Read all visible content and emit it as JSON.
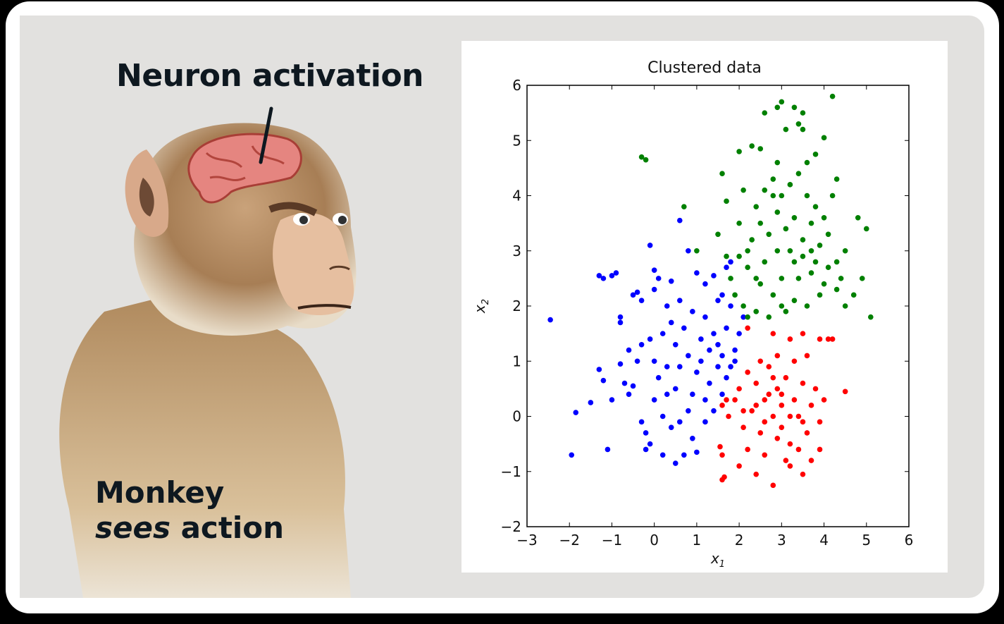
{
  "left_panel": {
    "caption_top": "Neuron activation",
    "caption_bottom_line1": "Monkey",
    "caption_bottom_italic": "sees",
    "caption_bottom_rest": " action",
    "illustration": "monkey-with-exposed-brain"
  },
  "chart_data": {
    "type": "scatter",
    "title": "Clustered data",
    "xlabel": "x_1",
    "ylabel": "x_2",
    "xlim": [
      -3,
      6
    ],
    "ylim": [
      -2,
      6
    ],
    "xticks": [
      "−3",
      "−2",
      "−1",
      "0",
      "1",
      "2",
      "3",
      "4",
      "5",
      "6"
    ],
    "yticks": [
      "−2",
      "−1",
      "0",
      "1",
      "2",
      "3",
      "4",
      "5",
      "6"
    ],
    "grid": false,
    "legend": null,
    "series": [
      {
        "name": "cluster-blue",
        "color": "#0000ff",
        "center": [
          0.8,
          1.2
        ],
        "points": [
          [
            -2.45,
            1.75
          ],
          [
            -1.95,
            -0.7
          ],
          [
            -1.85,
            0.07
          ],
          [
            -1.5,
            0.25
          ],
          [
            -1.1,
            -0.6
          ],
          [
            -1.3,
            2.55
          ],
          [
            -1.2,
            2.5
          ],
          [
            -1.0,
            2.55
          ],
          [
            -0.9,
            2.6
          ],
          [
            -0.8,
            1.8
          ],
          [
            -0.8,
            1.7
          ],
          [
            -0.6,
            1.2
          ],
          [
            -0.5,
            2.2
          ],
          [
            -0.4,
            2.25
          ],
          [
            -0.3,
            2.1
          ],
          [
            -0.1,
            3.1
          ],
          [
            0.0,
            2.65
          ],
          [
            0.1,
            2.5
          ],
          [
            0.0,
            2.3
          ],
          [
            0.4,
            2.45
          ],
          [
            0.6,
            3.55
          ],
          [
            0.8,
            3.0
          ],
          [
            1.0,
            2.6
          ],
          [
            1.2,
            2.4
          ],
          [
            1.4,
            2.55
          ],
          [
            1.6,
            2.2
          ],
          [
            1.5,
            2.1
          ],
          [
            1.8,
            2.8
          ],
          [
            1.7,
            2.7
          ],
          [
            -1.3,
            0.85
          ],
          [
            -1.2,
            0.65
          ],
          [
            -1.0,
            0.3
          ],
          [
            -0.8,
            0.95
          ],
          [
            -0.7,
            0.6
          ],
          [
            -0.5,
            0.55
          ],
          [
            -0.6,
            0.4
          ],
          [
            -0.3,
            -0.1
          ],
          [
            -0.2,
            -0.3
          ],
          [
            -0.2,
            -0.6
          ],
          [
            -0.1,
            -0.5
          ],
          [
            0.0,
            0.3
          ],
          [
            0.2,
            0.0
          ],
          [
            0.3,
            0.9
          ],
          [
            0.5,
            0.5
          ],
          [
            0.6,
            -0.1
          ],
          [
            0.8,
            0.1
          ],
          [
            0.9,
            -0.4
          ],
          [
            1.0,
            0.8
          ],
          [
            1.2,
            0.3
          ],
          [
            1.3,
            0.6
          ],
          [
            1.5,
            0.9
          ],
          [
            1.6,
            1.1
          ],
          [
            1.7,
            0.7
          ],
          [
            0.2,
            1.5
          ],
          [
            0.4,
            1.7
          ],
          [
            0.5,
            1.3
          ],
          [
            0.7,
            1.6
          ],
          [
            0.9,
            1.9
          ],
          [
            1.1,
            1.4
          ],
          [
            1.2,
            1.8
          ],
          [
            1.4,
            1.5
          ],
          [
            1.5,
            1.3
          ],
          [
            1.7,
            1.6
          ],
          [
            1.9,
            1.2
          ],
          [
            2.0,
            1.5
          ],
          [
            2.1,
            1.8
          ],
          [
            1.8,
            0.9
          ],
          [
            0.3,
            2.0
          ],
          [
            0.6,
            2.1
          ],
          [
            0.0,
            1.0
          ],
          [
            -0.3,
            1.3
          ],
          [
            0.1,
            0.7
          ],
          [
            0.4,
            -0.2
          ],
          [
            0.7,
            -0.7
          ],
          [
            1.0,
            -0.65
          ],
          [
            1.2,
            -0.1
          ],
          [
            1.4,
            0.1
          ],
          [
            0.5,
            -0.85
          ],
          [
            0.2,
            -0.7
          ],
          [
            0.9,
            0.4
          ],
          [
            1.1,
            1.0
          ],
          [
            1.3,
            1.2
          ],
          [
            1.6,
            0.4
          ],
          [
            0.8,
            1.1
          ],
          [
            0.3,
            0.4
          ],
          [
            -0.4,
            1.0
          ],
          [
            -0.1,
            1.4
          ],
          [
            0.6,
            0.9
          ],
          [
            1.8,
            2.0
          ],
          [
            1.9,
            1.0
          ]
        ]
      },
      {
        "name": "cluster-red",
        "color": "#ff0000",
        "center": [
          3.0,
          0.1
        ],
        "points": [
          [
            1.6,
            -1.15
          ],
          [
            1.65,
            -1.1
          ],
          [
            2.0,
            -0.9
          ],
          [
            2.4,
            -1.05
          ],
          [
            2.8,
            -1.25
          ],
          [
            3.2,
            -0.9
          ],
          [
            3.5,
            -1.05
          ],
          [
            3.7,
            -0.8
          ],
          [
            3.9,
            -0.6
          ],
          [
            4.5,
            0.45
          ],
          [
            4.2,
            1.4
          ],
          [
            4.1,
            1.4
          ],
          [
            3.9,
            1.4
          ],
          [
            2.2,
            1.6
          ],
          [
            2.8,
            1.5
          ],
          [
            3.2,
            1.4
          ],
          [
            3.5,
            1.5
          ],
          [
            1.7,
            0.3
          ],
          [
            1.6,
            0.2
          ],
          [
            1.75,
            0.0
          ],
          [
            1.9,
            0.3
          ],
          [
            2.0,
            0.5
          ],
          [
            2.1,
            -0.2
          ],
          [
            2.2,
            0.8
          ],
          [
            2.3,
            0.1
          ],
          [
            2.4,
            0.6
          ],
          [
            2.5,
            -0.3
          ],
          [
            2.6,
            0.3
          ],
          [
            2.7,
            0.9
          ],
          [
            2.8,
            0.0
          ],
          [
            2.9,
            0.5
          ],
          [
            3.0,
            -0.2
          ],
          [
            3.0,
            0.2
          ],
          [
            3.1,
            0.7
          ],
          [
            3.2,
            -0.5
          ],
          [
            3.3,
            0.3
          ],
          [
            3.4,
            0.0
          ],
          [
            3.5,
            0.6
          ],
          [
            3.6,
            -0.3
          ],
          [
            3.7,
            0.2
          ],
          [
            3.8,
            0.5
          ],
          [
            3.9,
            -0.1
          ],
          [
            4.0,
            0.3
          ],
          [
            2.5,
            1.0
          ],
          [
            2.9,
            1.1
          ],
          [
            3.3,
            1.0
          ],
          [
            3.6,
            1.1
          ],
          [
            2.2,
            -0.6
          ],
          [
            2.6,
            -0.7
          ],
          [
            3.1,
            -0.8
          ],
          [
            3.4,
            -0.6
          ],
          [
            2.7,
            0.4
          ],
          [
            2.9,
            -0.4
          ],
          [
            3.2,
            0.0
          ],
          [
            2.4,
            0.2
          ],
          [
            2.8,
            0.7
          ],
          [
            3.0,
            0.4
          ],
          [
            3.5,
            -0.1
          ],
          [
            2.6,
            -0.1
          ],
          [
            2.1,
            0.1
          ],
          [
            1.6,
            -0.7
          ],
          [
            1.55,
            -0.55
          ]
        ]
      },
      {
        "name": "cluster-green",
        "color": "#008000",
        "center": [
          3.0,
          3.0
        ],
        "points": [
          [
            -0.3,
            4.7
          ],
          [
            -0.2,
            4.65
          ],
          [
            0.7,
            3.8
          ],
          [
            1.0,
            3.0
          ],
          [
            1.6,
            4.4
          ],
          [
            1.7,
            3.9
          ],
          [
            2.0,
            4.8
          ],
          [
            2.3,
            4.9
          ],
          [
            2.5,
            4.85
          ],
          [
            2.8,
            4.0
          ],
          [
            2.9,
            5.6
          ],
          [
            3.0,
            5.7
          ],
          [
            3.3,
            5.6
          ],
          [
            3.5,
            5.5
          ],
          [
            4.2,
            5.8
          ],
          [
            2.6,
            5.5
          ],
          [
            3.4,
            5.3
          ],
          [
            3.5,
            5.2
          ],
          [
            3.1,
            5.2
          ],
          [
            4.0,
            5.05
          ],
          [
            3.8,
            4.75
          ],
          [
            4.3,
            4.3
          ],
          [
            4.8,
            3.6
          ],
          [
            5.0,
            3.4
          ],
          [
            5.1,
            1.8
          ],
          [
            4.9,
            2.5
          ],
          [
            4.7,
            2.2
          ],
          [
            4.5,
            2.0
          ],
          [
            4.3,
            2.3
          ],
          [
            4.0,
            2.4
          ],
          [
            3.9,
            2.2
          ],
          [
            3.7,
            2.6
          ],
          [
            3.5,
            2.9
          ],
          [
            3.3,
            2.8
          ],
          [
            3.0,
            2.5
          ],
          [
            2.8,
            2.2
          ],
          [
            2.5,
            2.4
          ],
          [
            2.2,
            2.7
          ],
          [
            2.0,
            2.9
          ],
          [
            1.8,
            2.5
          ],
          [
            1.9,
            2.2
          ],
          [
            2.1,
            2.0
          ],
          [
            2.4,
            1.9
          ],
          [
            2.7,
            1.8
          ],
          [
            3.0,
            2.0
          ],
          [
            3.3,
            2.1
          ],
          [
            3.6,
            2.0
          ],
          [
            2.3,
            3.2
          ],
          [
            2.5,
            3.5
          ],
          [
            2.7,
            3.3
          ],
          [
            2.9,
            3.7
          ],
          [
            3.1,
            3.4
          ],
          [
            3.3,
            3.6
          ],
          [
            3.5,
            3.2
          ],
          [
            3.7,
            3.5
          ],
          [
            3.9,
            3.1
          ],
          [
            4.1,
            3.3
          ],
          [
            4.3,
            2.8
          ],
          [
            4.5,
            3.0
          ],
          [
            2.4,
            3.8
          ],
          [
            2.6,
            4.1
          ],
          [
            2.8,
            4.3
          ],
          [
            3.0,
            4.0
          ],
          [
            3.2,
            4.2
          ],
          [
            3.4,
            4.4
          ],
          [
            3.6,
            4.0
          ],
          [
            3.8,
            3.8
          ],
          [
            4.0,
            3.6
          ],
          [
            4.2,
            4.0
          ],
          [
            2.0,
            3.5
          ],
          [
            2.2,
            3.0
          ],
          [
            2.6,
            2.8
          ],
          [
            3.2,
            3.0
          ],
          [
            3.4,
            2.5
          ],
          [
            3.8,
            2.8
          ],
          [
            4.1,
            2.7
          ],
          [
            1.5,
            3.3
          ],
          [
            1.7,
            2.9
          ],
          [
            2.1,
            4.1
          ],
          [
            2.9,
            4.6
          ],
          [
            3.6,
            4.6
          ],
          [
            4.4,
            2.5
          ],
          [
            3.1,
            1.9
          ],
          [
            2.2,
            1.8
          ],
          [
            2.9,
            3.0
          ],
          [
            3.7,
            3.0
          ],
          [
            2.4,
            2.5
          ]
        ]
      }
    ]
  }
}
